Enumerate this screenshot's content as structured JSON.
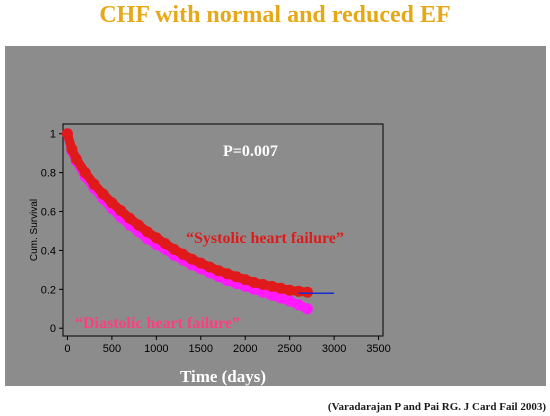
{
  "title": "CHF with normal and reduced EF",
  "citation": "(Varadarajan  P and Pai RG. J Card Fail 2003)",
  "colors": {
    "title": "#e6a817",
    "panel_background": "#8c8c8c",
    "plot_background": "#8c8c8c",
    "systolic": "#e01a1a",
    "diastolic": "#ff1aff",
    "systolic_label": "#e01a1a",
    "diastolic_label": "#ff3d7f",
    "tail_line": "#1a2bd1",
    "text_white": "#ffffff"
  },
  "chart_data": {
    "type": "line",
    "title": "",
    "xlabel": "Time (days)",
    "ylabel": "Cum. Survival",
    "xlim": [
      -50,
      3550
    ],
    "ylim": [
      -0.04,
      1.05
    ],
    "x_ticks": [
      0,
      500,
      1000,
      1500,
      2000,
      2500,
      3000,
      3500
    ],
    "y_ticks": [
      0,
      0.2,
      0.4,
      0.6,
      0.8,
      1
    ],
    "grid": false,
    "legend": "none",
    "annotations": [
      {
        "text": "P=0.007"
      }
    ],
    "series": [
      {
        "name": "“Systolic heart failure”",
        "color": "#e01a1a",
        "x": [
          0,
          50,
          100,
          200,
          300,
          400,
          500,
          600,
          700,
          800,
          900,
          1000,
          1100,
          1200,
          1300,
          1400,
          1500,
          1600,
          1700,
          1800,
          1900,
          2000,
          2100,
          2200,
          2300,
          2400,
          2500,
          2600,
          2700
        ],
        "y": [
          1.0,
          0.92,
          0.87,
          0.8,
          0.74,
          0.69,
          0.645,
          0.605,
          0.565,
          0.53,
          0.495,
          0.465,
          0.435,
          0.405,
          0.38,
          0.355,
          0.335,
          0.315,
          0.295,
          0.28,
          0.265,
          0.25,
          0.235,
          0.225,
          0.215,
          0.205,
          0.195,
          0.19,
          0.185
        ],
        "tail": {
          "x": [
            2600,
            3000
          ],
          "y": 0.18
        }
      },
      {
        "name": "“Diastolic heart failure”",
        "color": "#ff1aff",
        "x": [
          0,
          50,
          100,
          200,
          300,
          400,
          500,
          600,
          700,
          800,
          900,
          1000,
          1100,
          1200,
          1300,
          1400,
          1500,
          1600,
          1700,
          1800,
          1900,
          2000,
          2100,
          2200,
          2300,
          2400,
          2500,
          2600,
          2700
        ],
        "y": [
          1.0,
          0.91,
          0.86,
          0.78,
          0.72,
          0.665,
          0.615,
          0.57,
          0.53,
          0.495,
          0.46,
          0.43,
          0.405,
          0.375,
          0.35,
          0.325,
          0.305,
          0.285,
          0.265,
          0.245,
          0.23,
          0.215,
          0.2,
          0.185,
          0.17,
          0.155,
          0.14,
          0.12,
          0.1
        ]
      }
    ]
  }
}
